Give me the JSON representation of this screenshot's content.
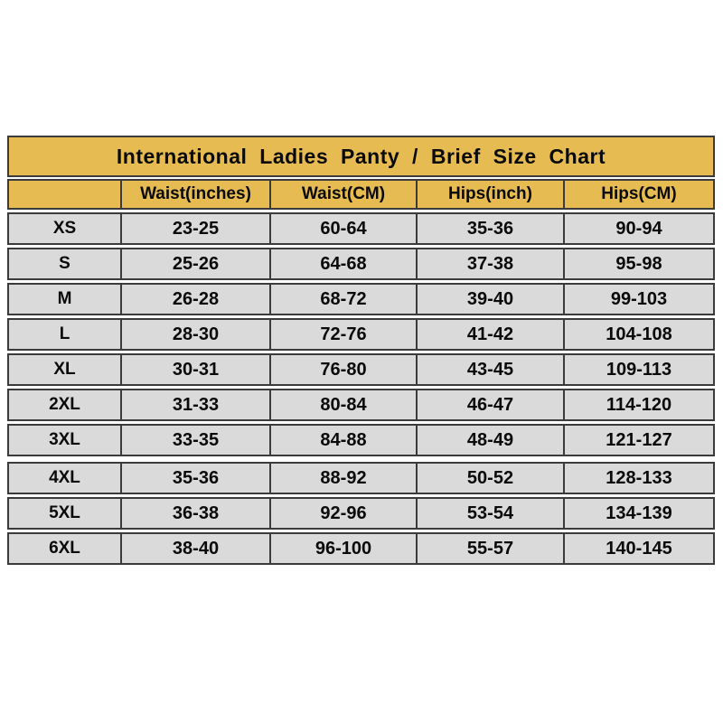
{
  "colors": {
    "background": "#FFFFFF",
    "band_gold": "#E6BC52",
    "row_gray": "#DADADA",
    "border": "#3B3B3B",
    "text": "#0A0A0A"
  },
  "chart_data": {
    "type": "table",
    "title": "International Ladies Panty / Brief Size Chart",
    "columns": [
      "",
      "Waist(inches)",
      "Waist(CM)",
      "Hips(inch)",
      "Hips(CM)"
    ],
    "rows": [
      [
        "XS",
        "23-25",
        "60-64",
        "35-36",
        "90-94"
      ],
      [
        "S",
        "25-26",
        "64-68",
        "37-38",
        "95-98"
      ],
      [
        "M",
        "26-28",
        "68-72",
        "39-40",
        "99-103"
      ],
      [
        "L",
        "28-30",
        "72-76",
        "41-42",
        "104-108"
      ],
      [
        "XL",
        "30-31",
        "76-80",
        "43-45",
        "109-113"
      ],
      [
        "2XL",
        "31-33",
        "80-84",
        "46-47",
        "114-120"
      ],
      [
        "3XL",
        "33-35",
        "84-88",
        "48-49",
        "121-127"
      ],
      [
        "4XL",
        "35-36",
        "88-92",
        "50-52",
        "128-133"
      ],
      [
        "5XL",
        "36-38",
        "92-96",
        "53-54",
        "134-139"
      ],
      [
        "6XL",
        "38-40",
        "96-100",
        "55-57",
        "140-145"
      ]
    ],
    "layout_hints": {
      "title_band": "gold full-width top band",
      "header_band": "gold, first column header empty",
      "body_rows": "light gray, separated by thin white gaps",
      "extra_gap_before_row": "4XL"
    }
  }
}
